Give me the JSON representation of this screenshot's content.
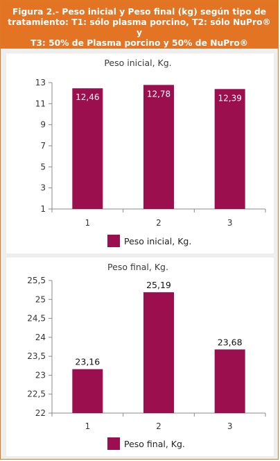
{
  "figure": {
    "title": "Figura 2.- Peso inicial y Peso final (kg) según tipo de\ntratamiento: T1: sólo plasma porcino, T2: sólo NuPro® y\nT3: 50% de Plasma porcino y 50% de NuPro®"
  },
  "colors": {
    "bar": "#9b0f4f",
    "header": "#e27424",
    "background": "#eeeeee"
  },
  "chart_data": [
    {
      "type": "bar",
      "title": "Peso inicial, Kg.",
      "categories": [
        "1",
        "2",
        "3"
      ],
      "series": [
        {
          "name": "Peso inicial, Kg.",
          "values": [
            12.46,
            12.78,
            12.39
          ]
        }
      ],
      "value_labels": [
        "12,46",
        "12,78",
        "12,39"
      ],
      "ylim": [
        1,
        13
      ],
      "yticks": [
        1,
        3,
        5,
        7,
        9,
        11,
        13
      ],
      "ytick_labels": [
        "1",
        "3",
        "5",
        "7",
        "9",
        "11",
        "13"
      ],
      "label_position": "inside",
      "grid": false,
      "legend": "bottom"
    },
    {
      "type": "bar",
      "title": "Peso final, Kg.",
      "categories": [
        "1",
        "2",
        "3"
      ],
      "series": [
        {
          "name": "Peso final, Kg.",
          "values": [
            23.16,
            25.19,
            23.68
          ]
        }
      ],
      "value_labels": [
        "23,16",
        "25,19",
        "23,68"
      ],
      "ylim": [
        22,
        25.5
      ],
      "yticks": [
        22,
        22.5,
        23,
        23.5,
        24,
        24.5,
        25,
        25.5
      ],
      "ytick_labels": [
        "22",
        "22,5",
        "23",
        "23,5",
        "24",
        "24,5",
        "25",
        "25,5"
      ],
      "label_position": "above",
      "grid": false,
      "legend": "bottom"
    }
  ]
}
